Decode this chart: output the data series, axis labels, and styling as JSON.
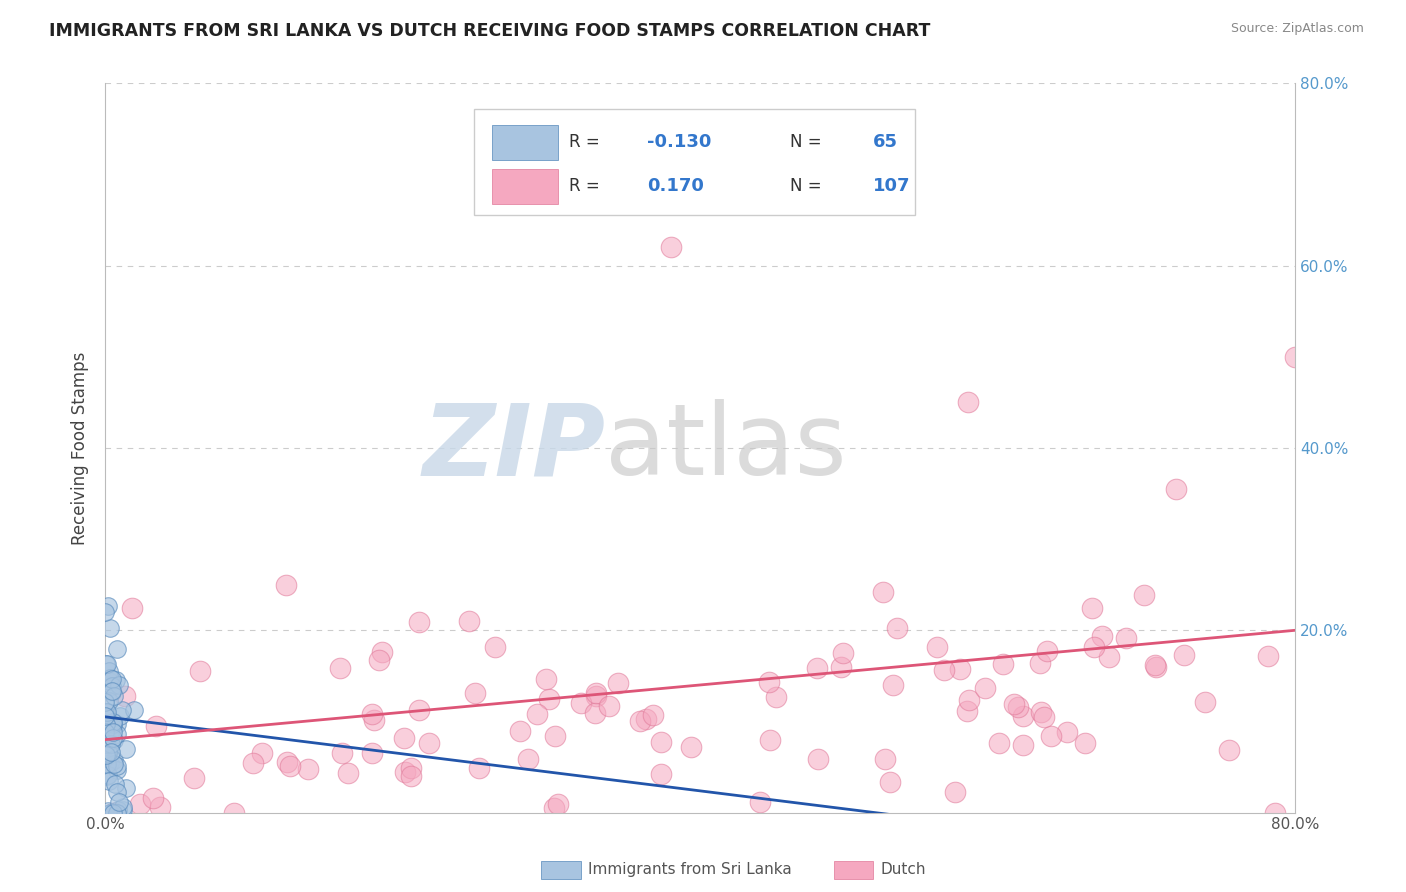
{
  "title": "IMMIGRANTS FROM SRI LANKA VS DUTCH RECEIVING FOOD STAMPS CORRELATION CHART",
  "source": "Source: ZipAtlas.com",
  "ylabel": "Receiving Food Stamps",
  "xmin": 0.0,
  "xmax": 80.0,
  "ymin": 0.0,
  "ymax": 80.0,
  "background_color": "#ffffff",
  "grid_color": "#cccccc",
  "blue_scatter_fill": "#a8c4e0",
  "blue_scatter_edge": "#5588bb",
  "pink_scatter_fill": "#f5a8c0",
  "pink_scatter_edge": "#e07898",
  "blue_line_color": "#2255aa",
  "pink_line_color": "#dd5577",
  "right_tick_color": "#5599cc",
  "legend_R_color": "#3377cc",
  "legend_N_color": "#3377cc",
  "legend_label_color": "#333333",
  "watermark_zip_color": "#c8d8e8",
  "watermark_atlas_color": "#c8c8c8"
}
